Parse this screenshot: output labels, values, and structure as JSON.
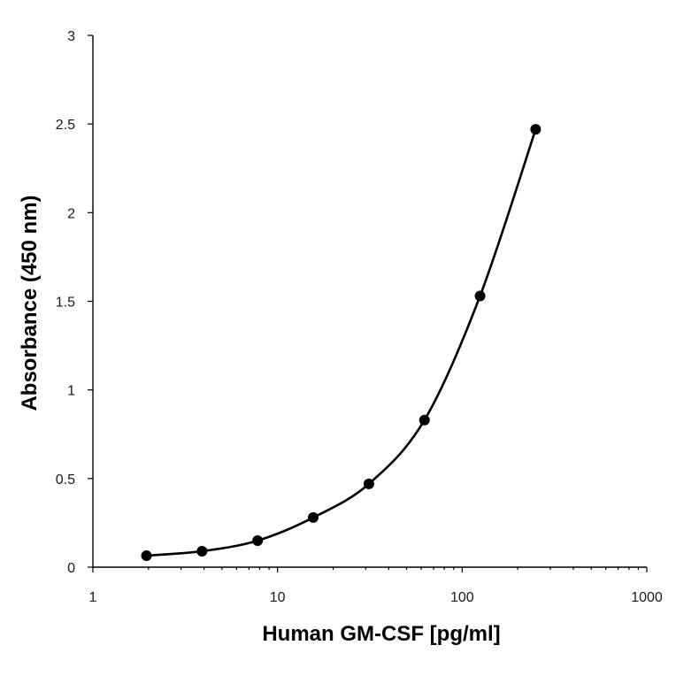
{
  "chart_data": {
    "type": "scatter",
    "title": "",
    "xlabel": "Human GM-CSF [pg/ml]",
    "ylabel": "Absorbance (450 nm)",
    "xscale": "log",
    "xlim": [
      1,
      1000
    ],
    "ylim": [
      0,
      3
    ],
    "xticks": [
      1,
      10,
      100,
      1000
    ],
    "xtick_labels": [
      "1",
      "10",
      "100",
      "1000"
    ],
    "yticks": [
      0,
      0.5,
      1,
      1.5,
      2,
      2.5,
      3
    ],
    "ytick_labels": [
      "0",
      "0.5",
      "1",
      "1.5",
      "2",
      "2.5",
      "3"
    ],
    "grid": false,
    "legend": false,
    "series": [
      {
        "x": [
          1.95,
          3.9,
          7.8,
          15.6,
          31.25,
          62.5,
          125,
          250
        ],
        "y": [
          0.065,
          0.09,
          0.15,
          0.28,
          0.47,
          0.83,
          1.53,
          2.47
        ],
        "marker": "circle",
        "line": "smooth",
        "color": "#000000"
      }
    ]
  }
}
